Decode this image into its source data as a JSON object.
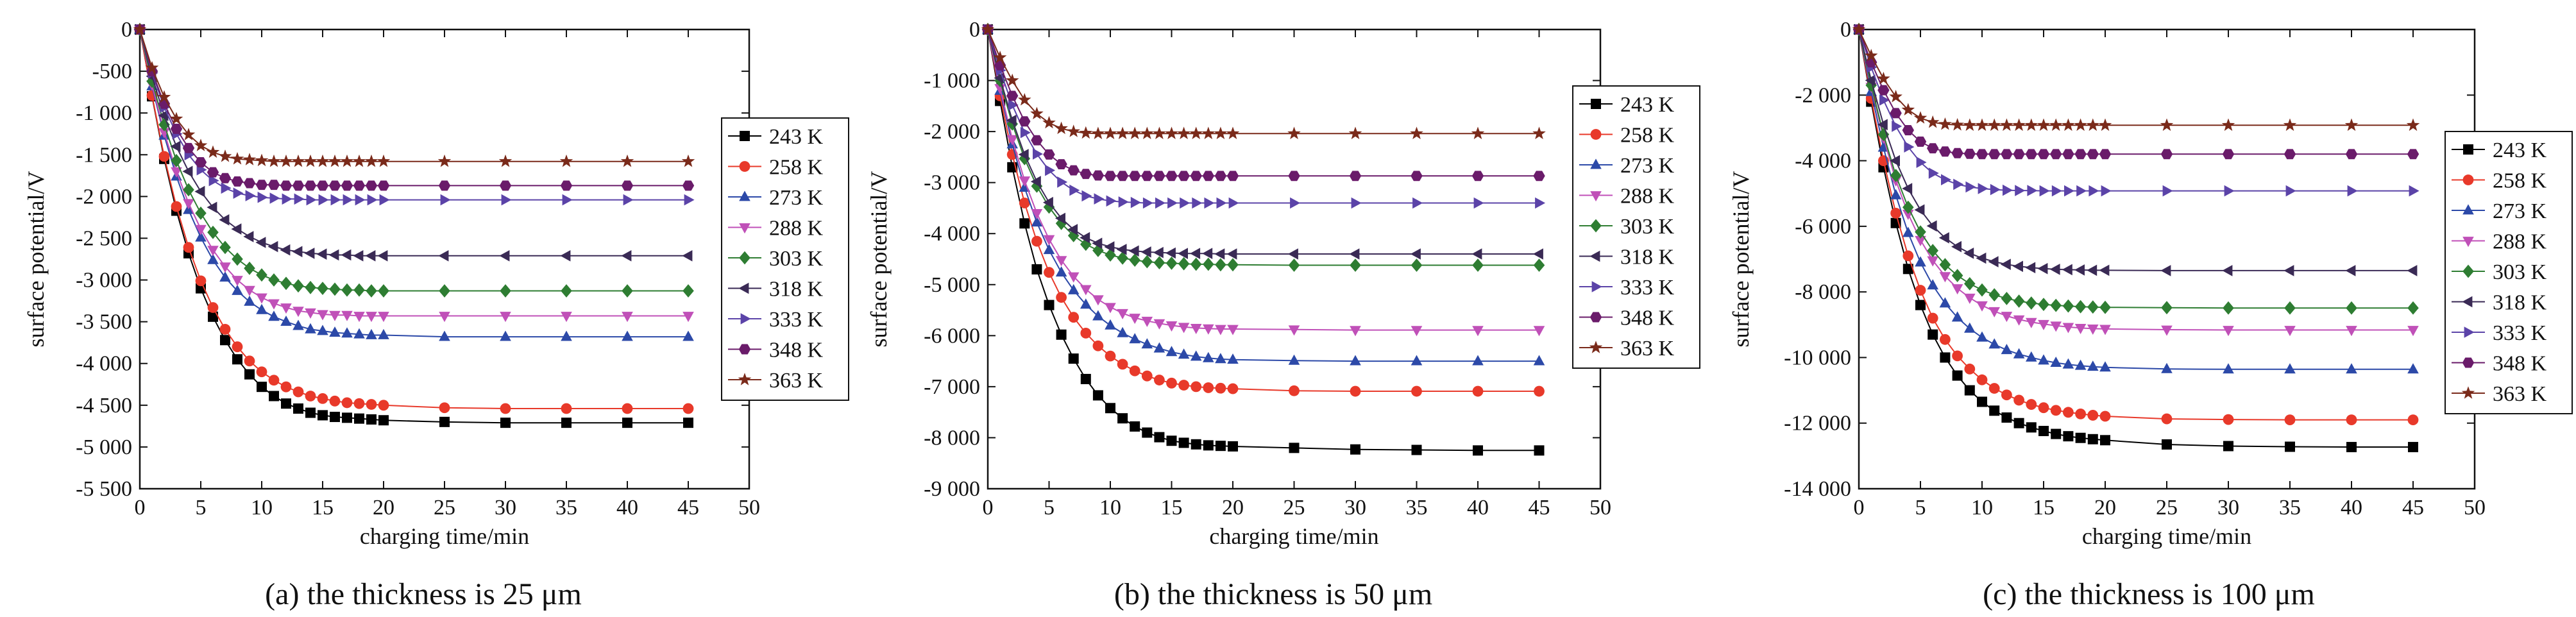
{
  "colors": {
    "243 K": "#000000",
    "258 K": "#e8392a",
    "273 K": "#2c49a8",
    "288 K": "#c050b8",
    "303 K": "#2e7d32",
    "318 K": "#3a2a55",
    "333 K": "#5b43a8",
    "348 K": "#6a1b6a",
    "363 K": "#7a2a1a"
  },
  "markers": {
    "243 K": "square",
    "258 K": "circle",
    "273 K": "triangle-up",
    "288 K": "triangle-down",
    "303 K": "diamond",
    "318 K": "triangle-left",
    "333 K": "triangle-right",
    "348 K": "hexagon",
    "363 K": "star"
  },
  "chart_data": [
    {
      "type": "line",
      "caption": "(a) the thickness is 25 μm",
      "xlabel": "charging time/min",
      "ylabel": "surface potential/V",
      "xlim": [
        0,
        50
      ],
      "ylim": [
        -5500,
        0
      ],
      "xticks": [
        "0",
        "5",
        "10",
        "15",
        "20",
        "25",
        "30",
        "35",
        "40",
        "45",
        "50"
      ],
      "yticks": [
        "0",
        "-500",
        "-1 000",
        "-1 500",
        "-2 000",
        "-2 500",
        "-3 000",
        "-3 500",
        "-4 000",
        "-4 500",
        "-5 000",
        "-5 500"
      ],
      "legend_position": "right",
      "x": [
        0,
        1,
        2,
        3,
        4,
        5,
        6,
        7,
        8,
        9,
        10,
        11,
        12,
        13,
        14,
        15,
        16,
        17,
        18,
        19,
        20,
        25,
        30,
        35,
        40,
        45
      ],
      "series": [
        {
          "name": "243 K",
          "values": [
            0,
            -800,
            -1550,
            -2170,
            -2680,
            -3100,
            -3440,
            -3720,
            -3950,
            -4130,
            -4280,
            -4390,
            -4480,
            -4540,
            -4590,
            -4620,
            -4640,
            -4650,
            -4660,
            -4670,
            -4680,
            -4700,
            -4710,
            -4710,
            -4710,
            -4710
          ]
        },
        {
          "name": "258 K",
          "values": [
            0,
            -790,
            -1520,
            -2120,
            -2610,
            -3010,
            -3330,
            -3590,
            -3800,
            -3970,
            -4100,
            -4200,
            -4280,
            -4340,
            -4390,
            -4420,
            -4450,
            -4470,
            -4480,
            -4490,
            -4500,
            -4530,
            -4540,
            -4540,
            -4540,
            -4540
          ]
        },
        {
          "name": "273 K",
          "values": [
            0,
            -680,
            -1270,
            -1760,
            -2160,
            -2490,
            -2760,
            -2970,
            -3130,
            -3260,
            -3360,
            -3440,
            -3500,
            -3550,
            -3590,
            -3610,
            -3630,
            -3640,
            -3650,
            -3660,
            -3660,
            -3680,
            -3680,
            -3680,
            -3680,
            -3680
          ]
        },
        {
          "name": "288 K",
          "values": [
            0,
            -660,
            -1230,
            -1700,
            -2080,
            -2390,
            -2640,
            -2840,
            -3000,
            -3120,
            -3210,
            -3280,
            -3330,
            -3370,
            -3390,
            -3410,
            -3420,
            -3420,
            -3430,
            -3430,
            -3430,
            -3430,
            -3430,
            -3430,
            -3430,
            -3430
          ]
        },
        {
          "name": "303 K",
          "values": [
            0,
            -620,
            -1140,
            -1570,
            -1920,
            -2200,
            -2430,
            -2610,
            -2750,
            -2860,
            -2940,
            -3000,
            -3040,
            -3070,
            -3090,
            -3100,
            -3110,
            -3120,
            -3120,
            -3130,
            -3130,
            -3130,
            -3130,
            -3130,
            -3130,
            -3130
          ]
        },
        {
          "name": "318 K",
          "values": [
            0,
            -560,
            -1030,
            -1400,
            -1700,
            -1940,
            -2130,
            -2280,
            -2390,
            -2480,
            -2550,
            -2600,
            -2640,
            -2660,
            -2680,
            -2690,
            -2700,
            -2700,
            -2710,
            -2710,
            -2710,
            -2710,
            -2710,
            -2710,
            -2710,
            -2710
          ]
        },
        {
          "name": "333 K",
          "values": [
            0,
            -520,
            -930,
            -1250,
            -1500,
            -1680,
            -1810,
            -1900,
            -1960,
            -1990,
            -2010,
            -2020,
            -2030,
            -2030,
            -2040,
            -2040,
            -2040,
            -2040,
            -2040,
            -2040,
            -2040,
            -2040,
            -2040,
            -2040,
            -2040,
            -2040
          ]
        },
        {
          "name": "348 K",
          "values": [
            0,
            -500,
            -890,
            -1190,
            -1420,
            -1590,
            -1710,
            -1780,
            -1820,
            -1840,
            -1860,
            -1860,
            -1870,
            -1870,
            -1870,
            -1870,
            -1870,
            -1870,
            -1870,
            -1870,
            -1870,
            -1870,
            -1870,
            -1870,
            -1870,
            -1870
          ]
        },
        {
          "name": "363 K",
          "values": [
            0,
            -460,
            -810,
            -1070,
            -1260,
            -1390,
            -1470,
            -1520,
            -1550,
            -1560,
            -1570,
            -1580,
            -1580,
            -1580,
            -1580,
            -1580,
            -1580,
            -1580,
            -1580,
            -1580,
            -1580,
            -1580,
            -1580,
            -1580,
            -1580,
            -1580
          ]
        }
      ]
    },
    {
      "type": "line",
      "caption": "(b) the thickness is 50 μm",
      "xlabel": "charging time/min",
      "ylabel": "surface potential/V",
      "xlim": [
        0,
        50
      ],
      "ylim": [
        -9000,
        0
      ],
      "xticks": [
        "0",
        "5",
        "10",
        "15",
        "20",
        "25",
        "30",
        "35",
        "40",
        "45",
        "50"
      ],
      "yticks": [
        "0",
        "-1 000",
        "-2 000",
        "-3 000",
        "-4 000",
        "-5 000",
        "-6 000",
        "-7 000",
        "-8 000",
        "-9 000"
      ],
      "legend_position": "right",
      "x": [
        0,
        1,
        2,
        3,
        4,
        5,
        6,
        7,
        8,
        9,
        10,
        11,
        12,
        13,
        14,
        15,
        16,
        17,
        18,
        19,
        20,
        25,
        30,
        35,
        40,
        45
      ],
      "series": [
        {
          "name": "243 K",
          "values": [
            0,
            -1400,
            -2700,
            -3800,
            -4700,
            -5400,
            -5980,
            -6450,
            -6850,
            -7170,
            -7420,
            -7620,
            -7780,
            -7900,
            -7990,
            -8060,
            -8100,
            -8130,
            -8150,
            -8160,
            -8170,
            -8200,
            -8230,
            -8240,
            -8250,
            -8250
          ]
        },
        {
          "name": "258 K",
          "values": [
            0,
            -1300,
            -2450,
            -3400,
            -4150,
            -4760,
            -5250,
            -5640,
            -5950,
            -6200,
            -6400,
            -6560,
            -6690,
            -6790,
            -6870,
            -6930,
            -6970,
            -7000,
            -7020,
            -7030,
            -7040,
            -7080,
            -7090,
            -7090,
            -7090,
            -7090
          ]
        },
        {
          "name": "273 K",
          "values": [
            0,
            -1200,
            -2250,
            -3100,
            -3780,
            -4320,
            -4760,
            -5110,
            -5390,
            -5620,
            -5800,
            -5950,
            -6070,
            -6170,
            -6250,
            -6320,
            -6370,
            -6410,
            -6440,
            -6460,
            -6470,
            -6490,
            -6500,
            -6500,
            -6500,
            -6500
          ]
        },
        {
          "name": "288 K",
          "values": [
            0,
            -1150,
            -2150,
            -2960,
            -3600,
            -4110,
            -4520,
            -4840,
            -5090,
            -5290,
            -5440,
            -5560,
            -5650,
            -5710,
            -5760,
            -5800,
            -5830,
            -5850,
            -5860,
            -5870,
            -5870,
            -5880,
            -5890,
            -5890,
            -5890,
            -5890
          ]
        },
        {
          "name": "303 K",
          "values": [
            0,
            -1000,
            -1850,
            -2530,
            -3070,
            -3480,
            -3800,
            -4040,
            -4210,
            -4330,
            -4420,
            -4480,
            -4520,
            -4550,
            -4570,
            -4580,
            -4590,
            -4600,
            -4600,
            -4610,
            -4610,
            -4620,
            -4620,
            -4620,
            -4620,
            -4620
          ]
        },
        {
          "name": "318 K",
          "values": [
            0,
            -950,
            -1780,
            -2450,
            -2980,
            -3390,
            -3700,
            -3920,
            -4080,
            -4190,
            -4260,
            -4310,
            -4340,
            -4360,
            -4370,
            -4380,
            -4390,
            -4390,
            -4390,
            -4400,
            -4400,
            -4400,
            -4400,
            -4400,
            -4400,
            -4400
          ]
        },
        {
          "name": "333 K",
          "values": [
            0,
            -800,
            -1480,
            -2020,
            -2440,
            -2760,
            -2990,
            -3150,
            -3260,
            -3320,
            -3360,
            -3380,
            -3390,
            -3400,
            -3400,
            -3400,
            -3400,
            -3400,
            -3400,
            -3400,
            -3400,
            -3400,
            -3400,
            -3400,
            -3400,
            -3400
          ]
        },
        {
          "name": "348 K",
          "values": [
            0,
            -700,
            -1300,
            -1800,
            -2170,
            -2450,
            -2640,
            -2760,
            -2830,
            -2860,
            -2870,
            -2870,
            -2870,
            -2870,
            -2870,
            -2870,
            -2870,
            -2870,
            -2870,
            -2870,
            -2870,
            -2870,
            -2870,
            -2870,
            -2870,
            -2870
          ]
        },
        {
          "name": "363 K",
          "values": [
            0,
            -550,
            -1000,
            -1380,
            -1650,
            -1830,
            -1940,
            -2000,
            -2030,
            -2040,
            -2040,
            -2040,
            -2040,
            -2040,
            -2040,
            -2040,
            -2040,
            -2040,
            -2040,
            -2040,
            -2040,
            -2040,
            -2040,
            -2040,
            -2040,
            -2040
          ]
        }
      ]
    },
    {
      "type": "line",
      "caption": "(c) the thickness is 100 μm",
      "xlabel": "charging time/min",
      "ylabel": "surface potential/V",
      "xlim": [
        0,
        50
      ],
      "ylim": [
        -14000,
        0
      ],
      "xticks": [
        "0",
        "5",
        "10",
        "15",
        "20",
        "25",
        "30",
        "35",
        "40",
        "45",
        "50"
      ],
      "yticks": [
        "0",
        "-2 000",
        "-4 000",
        "-6 000",
        "-8 000",
        "-10 000",
        "-12 000",
        "-14 000"
      ],
      "legend_position": "right",
      "x": [
        0,
        1,
        2,
        3,
        4,
        5,
        6,
        7,
        8,
        9,
        10,
        11,
        12,
        13,
        14,
        15,
        16,
        17,
        18,
        19,
        20,
        25,
        30,
        35,
        40,
        45
      ],
      "series": [
        {
          "name": "243 K",
          "values": [
            0,
            -2200,
            -4200,
            -5900,
            -7300,
            -8400,
            -9300,
            -10000,
            -10550,
            -11000,
            -11350,
            -11620,
            -11830,
            -12000,
            -12130,
            -12240,
            -12330,
            -12400,
            -12450,
            -12490,
            -12520,
            -12650,
            -12700,
            -12720,
            -12730,
            -12730
          ]
        },
        {
          "name": "258 K",
          "values": [
            0,
            -2100,
            -4000,
            -5600,
            -6900,
            -7950,
            -8800,
            -9450,
            -9950,
            -10350,
            -10680,
            -10940,
            -11140,
            -11300,
            -11430,
            -11530,
            -11610,
            -11670,
            -11720,
            -11760,
            -11790,
            -11870,
            -11890,
            -11900,
            -11900,
            -11900
          ]
        },
        {
          "name": "273 K",
          "values": [
            0,
            -1900,
            -3600,
            -5050,
            -6200,
            -7100,
            -7800,
            -8350,
            -8780,
            -9120,
            -9390,
            -9600,
            -9770,
            -9900,
            -10000,
            -10090,
            -10160,
            -10210,
            -10250,
            -10280,
            -10300,
            -10350,
            -10360,
            -10360,
            -10360,
            -10360
          ]
        },
        {
          "name": "288 K",
          "values": [
            0,
            -1750,
            -3300,
            -4600,
            -5620,
            -6420,
            -7040,
            -7520,
            -7890,
            -8180,
            -8410,
            -8590,
            -8730,
            -8840,
            -8920,
            -8980,
            -9030,
            -9070,
            -9100,
            -9120,
            -9130,
            -9150,
            -9160,
            -9160,
            -9160,
            -9160
          ]
        },
        {
          "name": "303 K",
          "values": [
            0,
            -1700,
            -3200,
            -4450,
            -5420,
            -6170,
            -6740,
            -7170,
            -7500,
            -7750,
            -7940,
            -8090,
            -8200,
            -8280,
            -8340,
            -8380,
            -8410,
            -8430,
            -8450,
            -8460,
            -8470,
            -8480,
            -8490,
            -8490,
            -8490,
            -8490
          ]
        },
        {
          "name": "318 K",
          "values": [
            0,
            -1550,
            -2900,
            -4000,
            -4850,
            -5500,
            -5990,
            -6350,
            -6620,
            -6820,
            -6970,
            -7080,
            -7160,
            -7220,
            -7260,
            -7290,
            -7310,
            -7320,
            -7330,
            -7340,
            -7340,
            -7350,
            -7350,
            -7350,
            -7350,
            -7350
          ]
        },
        {
          "name": "333 K",
          "values": [
            0,
            -1150,
            -2150,
            -2950,
            -3580,
            -4050,
            -4380,
            -4580,
            -4720,
            -4800,
            -4850,
            -4880,
            -4900,
            -4910,
            -4910,
            -4920,
            -4920,
            -4920,
            -4920,
            -4920,
            -4920,
            -4920,
            -4920,
            -4920,
            -4920,
            -4920
          ]
        },
        {
          "name": "348 K",
          "values": [
            0,
            -1000,
            -1850,
            -2550,
            -3070,
            -3420,
            -3620,
            -3720,
            -3770,
            -3790,
            -3800,
            -3800,
            -3800,
            -3800,
            -3800,
            -3800,
            -3800,
            -3800,
            -3800,
            -3800,
            -3800,
            -3800,
            -3800,
            -3800,
            -3800,
            -3800
          ]
        },
        {
          "name": "363 K",
          "values": [
            0,
            -800,
            -1500,
            -2050,
            -2450,
            -2700,
            -2830,
            -2890,
            -2910,
            -2920,
            -2920,
            -2920,
            -2920,
            -2920,
            -2920,
            -2920,
            -2920,
            -2920,
            -2920,
            -2920,
            -2920,
            -2920,
            -2920,
            -2920,
            -2920,
            -2920
          ]
        }
      ]
    }
  ]
}
